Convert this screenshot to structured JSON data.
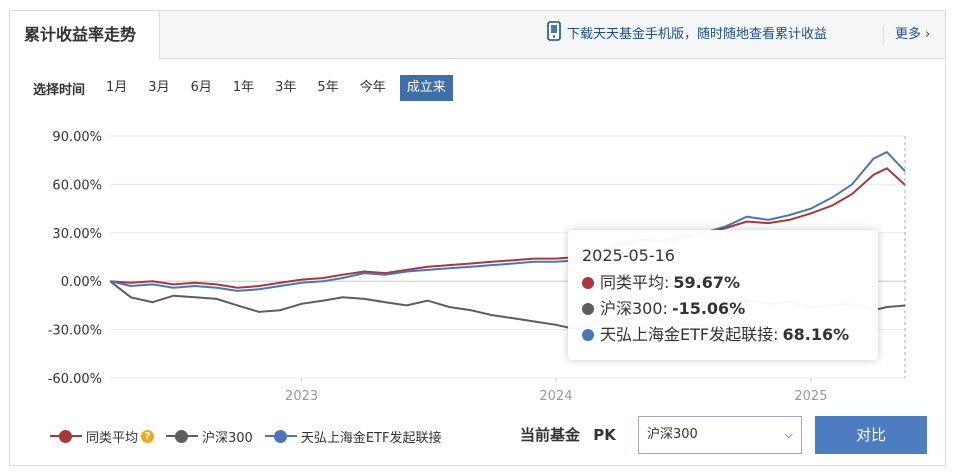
{
  "header": {
    "title": "累计收益率走势",
    "download_text": "下载天天基金手机版，随时随地查看累计收益",
    "more_text": "更多",
    "more_chevron": "›"
  },
  "range": {
    "label": "选择时间",
    "options": [
      "1月",
      "3月",
      "6月",
      "1年",
      "3年",
      "5年",
      "今年",
      "成立来"
    ],
    "selected": "成立来"
  },
  "tooltip": {
    "date": "2025-05-16",
    "rows": [
      {
        "name": "同类平均",
        "value": "59.67%",
        "color": "#a5393b"
      },
      {
        "name": "沪深300",
        "value": "-15.06%",
        "color": "#5d5d5d"
      },
      {
        "name": "天弘上海金ETF发起联接",
        "value": "68.16%",
        "color": "#4a76b8"
      }
    ]
  },
  "legend": {
    "items": [
      {
        "name": "同类平均",
        "color": "#a5393b",
        "icon": "question-icon",
        "icon_text": "?"
      },
      {
        "name": "沪深300",
        "color": "#5d5d5d"
      },
      {
        "name": "天弘上海金ETF发起联接",
        "color": "#4a76b8"
      }
    ]
  },
  "compare": {
    "label_main": "当前基金",
    "label_pk": "PK",
    "select_value": "沪深300",
    "button_label": "对比"
  },
  "chart_data": {
    "type": "line",
    "y_ticks": [
      "90.00%",
      "60.00%",
      "30.00%",
      "0.00%",
      "-30.00%",
      "-60.00%"
    ],
    "ylim": [
      -60,
      90
    ],
    "x_ticks": [
      "2023",
      "2024",
      "2025"
    ],
    "x_tick_dates": [
      "2023-01-01",
      "2024-01-01",
      "2025-01-01"
    ],
    "xlim": [
      "2022-04-01",
      "2025-05-16"
    ],
    "grid": true,
    "series": [
      {
        "name": "同类平均",
        "color": "#a5393b",
        "points": [
          [
            "2022-04-01",
            0
          ],
          [
            "2022-05-01",
            -1
          ],
          [
            "2022-06-01",
            0
          ],
          [
            "2022-07-01",
            -2
          ],
          [
            "2022-08-01",
            -1
          ],
          [
            "2022-09-01",
            -2
          ],
          [
            "2022-10-01",
            -4
          ],
          [
            "2022-11-01",
            -3
          ],
          [
            "2022-12-01",
            -1
          ],
          [
            "2023-01-01",
            1
          ],
          [
            "2023-02-01",
            2
          ],
          [
            "2023-03-01",
            4
          ],
          [
            "2023-04-01",
            6
          ],
          [
            "2023-05-01",
            5
          ],
          [
            "2023-06-01",
            7
          ],
          [
            "2023-07-01",
            9
          ],
          [
            "2023-08-01",
            10
          ],
          [
            "2023-09-01",
            11
          ],
          [
            "2023-10-01",
            12
          ],
          [
            "2023-11-01",
            13
          ],
          [
            "2023-12-01",
            14
          ],
          [
            "2024-01-01",
            14
          ],
          [
            "2024-02-01",
            15
          ],
          [
            "2024-03-01",
            18
          ],
          [
            "2024-04-01",
            23
          ],
          [
            "2024-05-01",
            26
          ],
          [
            "2024-06-01",
            25
          ],
          [
            "2024-07-01",
            28
          ],
          [
            "2024-08-01",
            30
          ],
          [
            "2024-09-01",
            33
          ],
          [
            "2024-10-01",
            37
          ],
          [
            "2024-11-01",
            36
          ],
          [
            "2024-12-01",
            38
          ],
          [
            "2025-01-01",
            42
          ],
          [
            "2025-02-01",
            47
          ],
          [
            "2025-03-01",
            54
          ],
          [
            "2025-04-01",
            66
          ],
          [
            "2025-04-20",
            70
          ],
          [
            "2025-05-16",
            59.67
          ]
        ]
      },
      {
        "name": "沪深300",
        "color": "#5d5d5d",
        "points": [
          [
            "2022-04-01",
            0
          ],
          [
            "2022-05-01",
            -10
          ],
          [
            "2022-06-01",
            -13
          ],
          [
            "2022-07-01",
            -9
          ],
          [
            "2022-08-01",
            -10
          ],
          [
            "2022-09-01",
            -11
          ],
          [
            "2022-10-01",
            -15
          ],
          [
            "2022-11-01",
            -19
          ],
          [
            "2022-12-01",
            -18
          ],
          [
            "2023-01-01",
            -14
          ],
          [
            "2023-02-01",
            -12
          ],
          [
            "2023-03-01",
            -10
          ],
          [
            "2023-04-01",
            -11
          ],
          [
            "2023-05-01",
            -13
          ],
          [
            "2023-06-01",
            -15
          ],
          [
            "2023-07-01",
            -12
          ],
          [
            "2023-08-01",
            -16
          ],
          [
            "2023-09-01",
            -18
          ],
          [
            "2023-10-01",
            -21
          ],
          [
            "2023-11-01",
            -23
          ],
          [
            "2023-12-01",
            -25
          ],
          [
            "2024-01-01",
            -27
          ],
          [
            "2024-02-01",
            -30
          ],
          [
            "2024-03-01",
            -25
          ],
          [
            "2024-04-01",
            -24
          ],
          [
            "2024-05-01",
            -23
          ],
          [
            "2024-06-01",
            -25
          ],
          [
            "2024-07-01",
            -26
          ],
          [
            "2024-08-01",
            -28
          ],
          [
            "2024-09-01",
            -27
          ],
          [
            "2024-10-01",
            -12
          ],
          [
            "2024-11-01",
            -14
          ],
          [
            "2024-12-01",
            -13
          ],
          [
            "2025-01-01",
            -16
          ],
          [
            "2025-02-01",
            -15
          ],
          [
            "2025-03-01",
            -14
          ],
          [
            "2025-04-01",
            -18
          ],
          [
            "2025-04-20",
            -16
          ],
          [
            "2025-05-16",
            -15.06
          ]
        ]
      },
      {
        "name": "天弘上海金ETF发起联接",
        "color": "#4a76b8",
        "points": [
          [
            "2022-04-01",
            0
          ],
          [
            "2022-05-01",
            -3
          ],
          [
            "2022-06-01",
            -2
          ],
          [
            "2022-07-01",
            -4
          ],
          [
            "2022-08-01",
            -3
          ],
          [
            "2022-09-01",
            -4
          ],
          [
            "2022-10-01",
            -6
          ],
          [
            "2022-11-01",
            -5
          ],
          [
            "2022-12-01",
            -3
          ],
          [
            "2023-01-01",
            -1
          ],
          [
            "2023-02-01",
            0
          ],
          [
            "2023-03-01",
            2
          ],
          [
            "2023-04-01",
            5
          ],
          [
            "2023-05-01",
            4
          ],
          [
            "2023-06-01",
            6
          ],
          [
            "2023-07-01",
            7
          ],
          [
            "2023-08-01",
            8
          ],
          [
            "2023-09-01",
            9
          ],
          [
            "2023-10-01",
            10
          ],
          [
            "2023-11-01",
            11
          ],
          [
            "2023-12-01",
            12
          ],
          [
            "2024-01-01",
            12
          ],
          [
            "2024-02-01",
            13
          ],
          [
            "2024-03-01",
            16
          ],
          [
            "2024-04-01",
            22
          ],
          [
            "2024-05-01",
            25
          ],
          [
            "2024-06-01",
            24
          ],
          [
            "2024-07-01",
            27
          ],
          [
            "2024-08-01",
            30
          ],
          [
            "2024-09-01",
            34
          ],
          [
            "2024-10-01",
            40
          ],
          [
            "2024-11-01",
            38
          ],
          [
            "2024-12-01",
            41
          ],
          [
            "2025-01-01",
            45
          ],
          [
            "2025-02-01",
            52
          ],
          [
            "2025-03-01",
            60
          ],
          [
            "2025-04-01",
            76
          ],
          [
            "2025-04-20",
            80
          ],
          [
            "2025-05-16",
            68.16
          ]
        ]
      }
    ]
  }
}
